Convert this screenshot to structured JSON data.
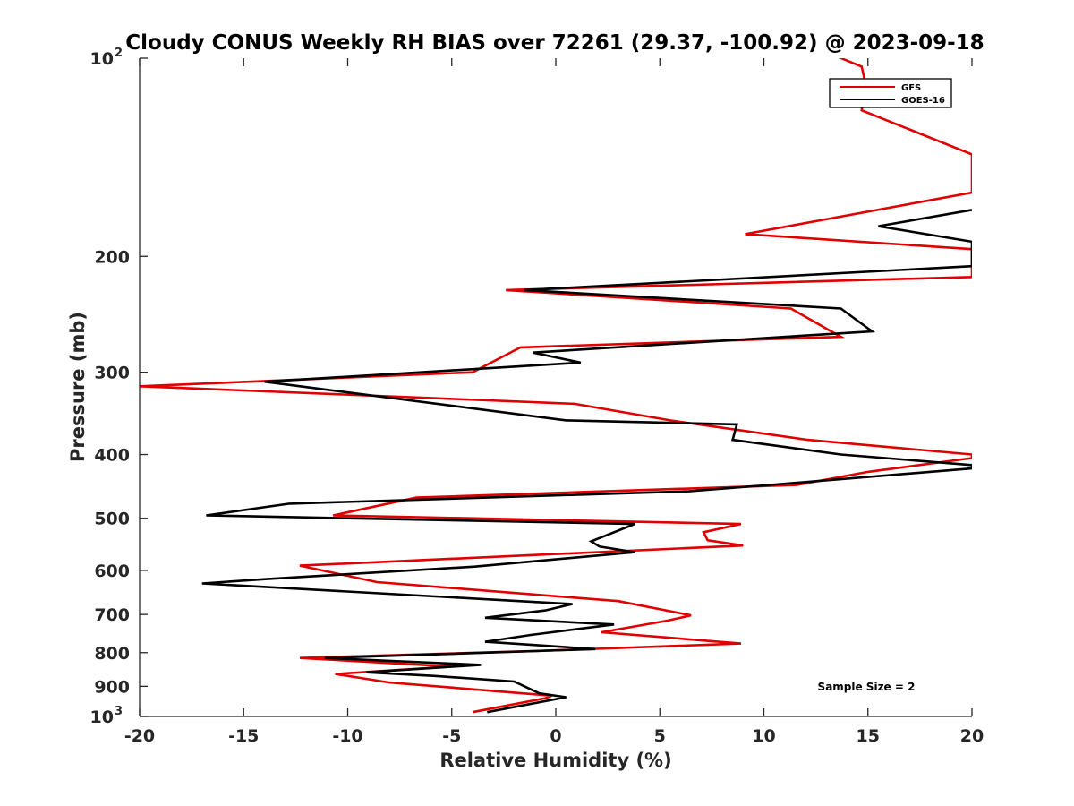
{
  "chart_data": {
    "type": "line",
    "title": "Cloudy CONUS Weekly RH BIAS over 72261 (29.37, -100.92) @ 2023-09-18",
    "xlabel": "Relative Humidity (%)",
    "ylabel": "Pressure (mb)",
    "xlim": [
      -20,
      20
    ],
    "ylim": [
      100,
      1000
    ],
    "y_scale": "log",
    "y_direction": "reversed",
    "grid": false,
    "legend_position": "top-right",
    "x_ticks": [
      "-20",
      "-15",
      "-10",
      "-5",
      "0",
      "5",
      "10",
      "15",
      "20"
    ],
    "y_ticks": [
      {
        "value": 100,
        "label": "10",
        "sup": "2"
      },
      {
        "value": 200,
        "label": "200"
      },
      {
        "value": 300,
        "label": "300"
      },
      {
        "value": 400,
        "label": "400"
      },
      {
        "value": 500,
        "label": "500"
      },
      {
        "value": 600,
        "label": "600"
      },
      {
        "value": 700,
        "label": "700"
      },
      {
        "value": 800,
        "label": "800"
      },
      {
        "value": 900,
        "label": "900"
      },
      {
        "value": 1000,
        "label": "10",
        "sup": "3"
      }
    ],
    "annotation": "Sample Size = 2",
    "series": [
      {
        "name": "GFS",
        "color": "#e00000",
        "x": [
          -4.0,
          -0.5,
          -0.2,
          -8.0,
          -10.6,
          -5.0,
          -12.3,
          -0.8,
          8.9,
          2.2,
          5.4,
          6.5,
          3.0,
          -8.6,
          -12.3,
          9.0,
          7.3,
          7.1,
          8.9,
          -10.7,
          -6.7,
          11.6,
          15.0,
          20.0,
          20.0,
          12.1,
          5.5,
          0.9,
          -20.0,
          -4.0,
          -1.7,
          13.7,
          11.3,
          -2.4,
          20.0,
          20.0,
          9.1,
          20.0,
          20.0,
          14.7,
          14.9,
          14.7,
          12.0
        ],
        "y": [
          985,
          938,
          930,
          888,
          862,
          840,
          815,
          795,
          775,
          745,
          715,
          702,
          668,
          625,
          590,
          550,
          540,
          525,
          510,
          495,
          465,
          445,
          425,
          405,
          400,
          380,
          355,
          335,
          315,
          300,
          275,
          265,
          240,
          225,
          215,
          195,
          185,
          160,
          140,
          120,
          110,
          103,
          95
        ]
      },
      {
        "name": "GOES-16",
        "color": "#000000",
        "x": [
          -3.3,
          0.5,
          -0.8,
          -2.0,
          -5.8,
          -9.1,
          -3.6,
          -11.1,
          1.9,
          -3.4,
          -1.2,
          2.8,
          -3.4,
          -0.5,
          0.8,
          -17.0,
          -13.8,
          -3.9,
          3.8,
          2.1,
          1.7,
          3.8,
          -16.8,
          -12.8,
          6.4,
          10.3,
          20.0,
          20.0,
          13.7,
          8.5,
          8.7,
          0.5,
          -14.0,
          1.2,
          -1.1,
          15.2,
          13.7,
          -1.5,
          20.0,
          20.0,
          15.5,
          20.0
        ],
        "y": [
          985,
          935,
          922,
          885,
          868,
          857,
          835,
          815,
          790,
          770,
          752,
          725,
          708,
          690,
          675,
          628,
          618,
          592,
          563,
          552,
          542,
          510,
          495,
          475,
          455,
          445,
          420,
          415,
          400,
          380,
          360,
          355,
          310,
          290,
          280,
          260,
          240,
          225,
          207,
          190,
          180,
          170
        ]
      }
    ]
  }
}
